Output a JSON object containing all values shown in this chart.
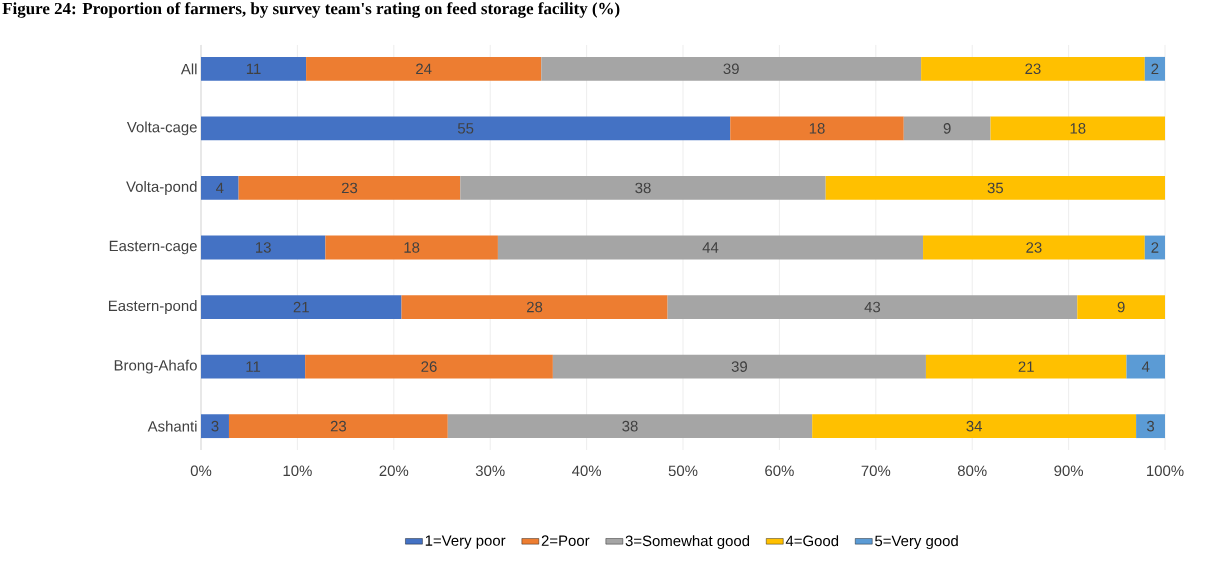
{
  "chart_data": {
    "type": "bar",
    "orientation": "horizontal",
    "stacked": true,
    "title": "Figure 24: Proportion of farmers, by survey team's rating on feed storage facility (%)",
    "categories": [
      "All",
      "Volta-cage",
      "Volta-pond",
      "Eastern-cage",
      "Eastern-pond",
      "Brong-Ahafo",
      "Ashanti"
    ],
    "series": [
      {
        "name": "1=Very poor",
        "color": "#4472c4",
        "values": [
          10.9,
          54.9,
          3.9,
          12.9,
          20.8,
          10.8,
          2.9
        ],
        "value_labels": [
          "11",
          "55",
          "4",
          "13",
          "21",
          "11",
          "3"
        ]
      },
      {
        "name": "2=Poor",
        "color": "#ed7d31",
        "values": [
          24.4,
          18.0,
          23.0,
          17.9,
          27.6,
          25.7,
          22.7
        ],
        "value_labels": [
          "24",
          "18",
          "23",
          "18",
          "28",
          "26",
          "23"
        ]
      },
      {
        "name": "3=Somewhat good",
        "color": "#a5a5a5",
        "values": [
          39.4,
          9.0,
          37.9,
          44.1,
          42.5,
          38.7,
          37.8
        ],
        "value_labels": [
          "39",
          "9",
          "38",
          "44",
          "43",
          "39",
          "38"
        ]
      },
      {
        "name": "4=Good",
        "color": "#ffc000",
        "values": [
          23.2,
          18.1,
          35.2,
          23.0,
          9.1,
          20.8,
          33.6
        ],
        "value_labels": [
          "23",
          "18",
          "35",
          "23",
          "9",
          "21",
          "34"
        ]
      },
      {
        "name": "5=Very good",
        "color": "#5b9bd5",
        "values": [
          2.1,
          null,
          null,
          2.1,
          null,
          4.0,
          3.0
        ],
        "value_labels": [
          "2",
          null,
          null,
          "2",
          null,
          "4",
          "3"
        ]
      }
    ],
    "xlim": [
      0,
      100
    ],
    "xticks": [
      {
        "value": 0,
        "label": "0%"
      },
      {
        "value": 10,
        "label": "10%"
      },
      {
        "value": 20,
        "label": "20%"
      },
      {
        "value": 30,
        "label": "30%"
      },
      {
        "value": 40,
        "label": "40%"
      },
      {
        "value": 50,
        "label": "50%"
      },
      {
        "value": 60,
        "label": "60%"
      },
      {
        "value": 70,
        "label": "70%"
      },
      {
        "value": 80,
        "label": "80%"
      },
      {
        "value": 90,
        "label": "90%"
      },
      {
        "value": 100,
        "label": "100%"
      }
    ],
    "grid": "x",
    "legend": "bottom"
  }
}
